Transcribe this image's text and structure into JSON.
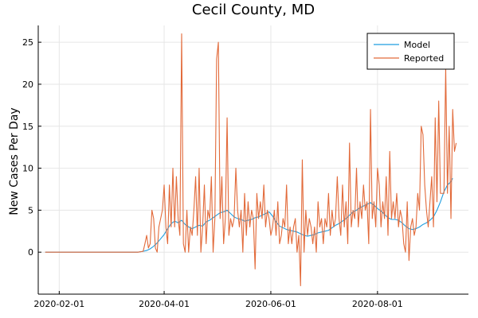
{
  "chart_data": {
    "type": "line",
    "title": "Cecil County, MD",
    "xlabel": "",
    "ylabel": "New Cases Per Day",
    "x_tick_labels": [
      "2020-02-01",
      "2020-04-01",
      "2020-06-01",
      "2020-08-01"
    ],
    "x_tick_days": [
      0,
      60,
      121,
      182
    ],
    "y_ticks": [
      0,
      5,
      10,
      15,
      20,
      25
    ],
    "xlim": [
      -12,
      234
    ],
    "ylim": [
      -5,
      27
    ],
    "grid": true,
    "legend_position": "top-right",
    "series": [
      {
        "name": "Model",
        "color": "#1f9ee0",
        "points": [
          [
            -8,
            0
          ],
          [
            45,
            0
          ],
          [
            48,
            0.1
          ],
          [
            50,
            0.2
          ],
          [
            52,
            0.4
          ],
          [
            54,
            0.7
          ],
          [
            56,
            1.1
          ],
          [
            58,
            1.6
          ],
          [
            60,
            2.1
          ],
          [
            62,
            2.8
          ],
          [
            64,
            3.4
          ],
          [
            66,
            3.7
          ],
          [
            68,
            3.5
          ],
          [
            70,
            3.8
          ],
          [
            72,
            3.3
          ],
          [
            74,
            3.0
          ],
          [
            76,
            2.8
          ],
          [
            78,
            3.0
          ],
          [
            80,
            3.2
          ],
          [
            82,
            3.1
          ],
          [
            84,
            3.6
          ],
          [
            86,
            3.8
          ],
          [
            88,
            4.1
          ],
          [
            90,
            4.4
          ],
          [
            92,
            4.7
          ],
          [
            94,
            4.8
          ],
          [
            96,
            5.0
          ],
          [
            98,
            4.6
          ],
          [
            100,
            4.2
          ],
          [
            102,
            4.0
          ],
          [
            104,
            3.9
          ],
          [
            106,
            3.7
          ],
          [
            108,
            3.8
          ],
          [
            110,
            3.9
          ],
          [
            112,
            4.1
          ],
          [
            114,
            4.2
          ],
          [
            116,
            4.4
          ],
          [
            118,
            4.6
          ],
          [
            120,
            4.8
          ],
          [
            122,
            4.3
          ],
          [
            124,
            3.6
          ],
          [
            126,
            3.1
          ],
          [
            128,
            2.9
          ],
          [
            130,
            2.7
          ],
          [
            132,
            2.6
          ],
          [
            134,
            2.5
          ],
          [
            136,
            2.4
          ],
          [
            138,
            2.2
          ],
          [
            140,
            2.0
          ],
          [
            142,
            1.9
          ],
          [
            144,
            2.0
          ],
          [
            146,
            2.1
          ],
          [
            148,
            2.3
          ],
          [
            150,
            2.4
          ],
          [
            152,
            2.5
          ],
          [
            154,
            2.6
          ],
          [
            156,
            2.9
          ],
          [
            158,
            3.2
          ],
          [
            160,
            3.4
          ],
          [
            162,
            3.7
          ],
          [
            164,
            4.0
          ],
          [
            166,
            4.4
          ],
          [
            168,
            4.8
          ],
          [
            170,
            5.0
          ],
          [
            172,
            5.3
          ],
          [
            174,
            5.5
          ],
          [
            176,
            5.7
          ],
          [
            178,
            5.9
          ],
          [
            180,
            5.6
          ],
          [
            182,
            5.2
          ],
          [
            184,
            4.9
          ],
          [
            186,
            4.5
          ],
          [
            188,
            4.1
          ],
          [
            190,
            3.9
          ],
          [
            192,
            3.9
          ],
          [
            194,
            3.8
          ],
          [
            196,
            3.5
          ],
          [
            198,
            3.1
          ],
          [
            200,
            2.8
          ],
          [
            202,
            2.7
          ],
          [
            204,
            2.8
          ],
          [
            206,
            3.0
          ],
          [
            208,
            3.3
          ],
          [
            210,
            3.5
          ],
          [
            212,
            3.8
          ],
          [
            214,
            4.2
          ],
          [
            216,
            5.0
          ],
          [
            218,
            6.0
          ],
          [
            220,
            7.2
          ],
          [
            222,
            8.0
          ],
          [
            224,
            8.4
          ],
          [
            225,
            8.8
          ]
        ]
      },
      {
        "name": "Reported",
        "color": "#e26a3a",
        "points": [
          [
            -8,
            0
          ],
          [
            45,
            0
          ],
          [
            48,
            0.1
          ],
          [
            49,
            1
          ],
          [
            50,
            2
          ],
          [
            51,
            0.5
          ],
          [
            52,
            1
          ],
          [
            53,
            5
          ],
          [
            54,
            4
          ],
          [
            55,
            0.5
          ],
          [
            56,
            0
          ],
          [
            57,
            3
          ],
          [
            58,
            4
          ],
          [
            59,
            5
          ],
          [
            60,
            8
          ],
          [
            61,
            3
          ],
          [
            62,
            1
          ],
          [
            63,
            8
          ],
          [
            64,
            3
          ],
          [
            65,
            10
          ],
          [
            66,
            3
          ],
          [
            67,
            9
          ],
          [
            68,
            4
          ],
          [
            69,
            2
          ],
          [
            70,
            26
          ],
          [
            71,
            1
          ],
          [
            72,
            0
          ],
          [
            73,
            5
          ],
          [
            74,
            0
          ],
          [
            75,
            3
          ],
          [
            76,
            2
          ],
          [
            77,
            5
          ],
          [
            78,
            9
          ],
          [
            79,
            2
          ],
          [
            80,
            10
          ],
          [
            81,
            0
          ],
          [
            82,
            3
          ],
          [
            83,
            8
          ],
          [
            84,
            1
          ],
          [
            85,
            5
          ],
          [
            86,
            4
          ],
          [
            87,
            9
          ],
          [
            88,
            0
          ],
          [
            89,
            4
          ],
          [
            90,
            23
          ],
          [
            91,
            25
          ],
          [
            92,
            4
          ],
          [
            93,
            9
          ],
          [
            94,
            1
          ],
          [
            95,
            4
          ],
          [
            96,
            16
          ],
          [
            97,
            2
          ],
          [
            98,
            4
          ],
          [
            99,
            3
          ],
          [
            100,
            4
          ],
          [
            101,
            10
          ],
          [
            102,
            5
          ],
          [
            103,
            3
          ],
          [
            104,
            5
          ],
          [
            105,
            0
          ],
          [
            106,
            7
          ],
          [
            107,
            2
          ],
          [
            108,
            6
          ],
          [
            109,
            3
          ],
          [
            110,
            5
          ],
          [
            111,
            4
          ],
          [
            112,
            -2
          ],
          [
            113,
            7
          ],
          [
            114,
            4
          ],
          [
            115,
            6
          ],
          [
            116,
            4
          ],
          [
            117,
            8
          ],
          [
            118,
            3
          ],
          [
            119,
            5
          ],
          [
            120,
            4
          ],
          [
            121,
            2
          ],
          [
            122,
            3
          ],
          [
            123,
            5
          ],
          [
            124,
            2
          ],
          [
            125,
            6
          ],
          [
            126,
            1
          ],
          [
            127,
            2
          ],
          [
            128,
            4
          ],
          [
            129,
            3
          ],
          [
            130,
            8
          ],
          [
            131,
            1
          ],
          [
            132,
            3
          ],
          [
            133,
            1
          ],
          [
            134,
            3
          ],
          [
            135,
            4
          ],
          [
            136,
            0
          ],
          [
            137,
            2
          ],
          [
            138,
            -4
          ],
          [
            139,
            11
          ],
          [
            140,
            0
          ],
          [
            141,
            5
          ],
          [
            142,
            2
          ],
          [
            143,
            4
          ],
          [
            144,
            3
          ],
          [
            145,
            1
          ],
          [
            146,
            3
          ],
          [
            147,
            0
          ],
          [
            148,
            6
          ],
          [
            149,
            3
          ],
          [
            150,
            4
          ],
          [
            151,
            1
          ],
          [
            152,
            4
          ],
          [
            153,
            3
          ],
          [
            154,
            7
          ],
          [
            155,
            2
          ],
          [
            156,
            5
          ],
          [
            157,
            3
          ],
          [
            158,
            4
          ],
          [
            159,
            9
          ],
          [
            160,
            4
          ],
          [
            161,
            2
          ],
          [
            162,
            8
          ],
          [
            163,
            3
          ],
          [
            164,
            6
          ],
          [
            165,
            1
          ],
          [
            166,
            13
          ],
          [
            167,
            3
          ],
          [
            168,
            5
          ],
          [
            169,
            4
          ],
          [
            170,
            10
          ],
          [
            171,
            3
          ],
          [
            172,
            6
          ],
          [
            173,
            4
          ],
          [
            174,
            8
          ],
          [
            175,
            5
          ],
          [
            176,
            6
          ],
          [
            177,
            1
          ],
          [
            178,
            17
          ],
          [
            179,
            4
          ],
          [
            180,
            6
          ],
          [
            181,
            3
          ],
          [
            182,
            10
          ],
          [
            183,
            8
          ],
          [
            184,
            3
          ],
          [
            185,
            6
          ],
          [
            186,
            4
          ],
          [
            187,
            9
          ],
          [
            188,
            2
          ],
          [
            189,
            12
          ],
          [
            190,
            4
          ],
          [
            191,
            6
          ],
          [
            192,
            4
          ],
          [
            193,
            7
          ],
          [
            194,
            3
          ],
          [
            195,
            5
          ],
          [
            196,
            4
          ],
          [
            197,
            1
          ],
          [
            198,
            0
          ],
          [
            199,
            6
          ],
          [
            200,
            -1
          ],
          [
            201,
            3
          ],
          [
            202,
            4
          ],
          [
            203,
            2
          ],
          [
            204,
            3
          ],
          [
            205,
            7
          ],
          [
            206,
            5
          ],
          [
            207,
            15
          ],
          [
            208,
            14
          ],
          [
            209,
            8
          ],
          [
            210,
            5
          ],
          [
            211,
            3
          ],
          [
            212,
            6
          ],
          [
            213,
            9
          ],
          [
            214,
            3
          ],
          [
            215,
            16
          ],
          [
            216,
            6
          ],
          [
            217,
            18
          ],
          [
            218,
            7
          ],
          [
            219,
            7
          ],
          [
            220,
            7
          ],
          [
            221,
            22
          ],
          [
            222,
            7
          ],
          [
            223,
            15
          ],
          [
            224,
            4
          ],
          [
            225,
            17
          ],
          [
            226,
            12
          ],
          [
            227,
            13
          ]
        ]
      }
    ]
  }
}
